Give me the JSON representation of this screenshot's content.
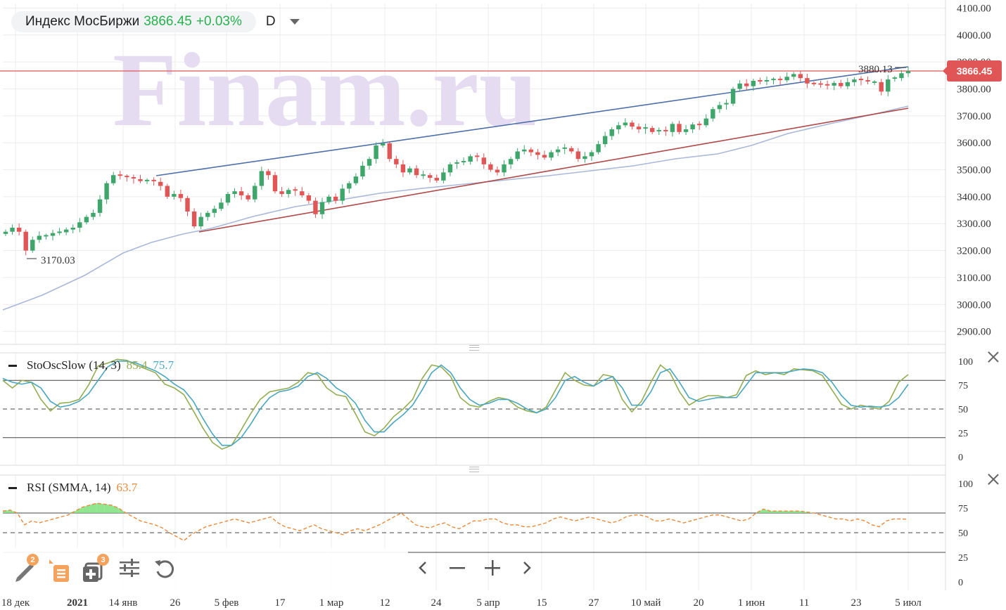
{
  "header": {
    "instrument": "Индекс МосБиржи",
    "price": "3866.45",
    "change": "+0.03%",
    "period": "D"
  },
  "colors": {
    "up": "#3fa66b",
    "down": "#e05656",
    "price_line": "#e05656",
    "upper_trend": "#4f6fa8",
    "lower_trend": "#b04848",
    "ma": "#a9b8d8",
    "stoch_k": "#93ad52",
    "stoch_d": "#49a6bf",
    "rsi": "#e88a3a",
    "rsi_fill": "#7ee07a",
    "watermark": "#e6dcf2"
  },
  "watermark": "Finam.ru",
  "chart_data": [
    {
      "type": "candlestick",
      "title": "Индекс МосБиржи",
      "ylim": [
        2850,
        4120
      ],
      "y_ticks": [
        "4100.00",
        "4000.00",
        "3900.00",
        "3800.00",
        "3700.00",
        "3600.00",
        "3500.00",
        "3400.00",
        "3300.00",
        "3200.00",
        "3100.00",
        "3000.00",
        "2900.00"
      ],
      "last_price_label": "3866.45",
      "annotations": {
        "high": "3880.13",
        "low": "3170.03"
      },
      "x_tick_labels": [
        "18 дек",
        "2021",
        "14 янв",
        "26",
        "5 фев",
        "17",
        "1 мар",
        "12",
        "24",
        "5 апр",
        "15",
        "27",
        "10 май",
        "20",
        "1 июн",
        "11",
        "23",
        "5 июл"
      ],
      "close": [
        3270,
        3285,
        3270,
        3200,
        3240,
        3255,
        3255,
        3265,
        3268,
        3278,
        3285,
        3305,
        3325,
        3340,
        3390,
        3450,
        3480,
        3475,
        3470,
        3465,
        3458,
        3460,
        3455,
        3440,
        3400,
        3410,
        3395,
        3345,
        3290,
        3325,
        3340,
        3355,
        3378,
        3410,
        3420,
        3405,
        3390,
        3440,
        3495,
        3480,
        3420,
        3410,
        3425,
        3420,
        3405,
        3385,
        3335,
        3380,
        3400,
        3385,
        3430,
        3450,
        3475,
        3515,
        3540,
        3590,
        3598,
        3540,
        3520,
        3490,
        3505,
        3480,
        3480,
        3470,
        3460,
        3490,
        3520,
        3525,
        3530,
        3550,
        3545,
        3520,
        3500,
        3490,
        3520,
        3540,
        3568,
        3575,
        3565,
        3555,
        3545,
        3565,
        3575,
        3580,
        3568,
        3540,
        3550,
        3565,
        3595,
        3625,
        3650,
        3665,
        3675,
        3660,
        3650,
        3655,
        3640,
        3645,
        3640,
        3670,
        3640,
        3650,
        3668,
        3665,
        3690,
        3725,
        3740,
        3745,
        3800,
        3820,
        3810,
        3830,
        3825,
        3830,
        3835,
        3832,
        3845,
        3855,
        3840,
        3820,
        3818,
        3815,
        3812,
        3822,
        3810,
        3825,
        3835,
        3830,
        3825,
        3825,
        3790,
        3835,
        3840,
        3858,
        3866
      ]
    },
    {
      "type": "line",
      "title": "StoOscSlow (14, 3)",
      "ylim": [
        0,
        100
      ],
      "y_ticks": [
        "100",
        "75",
        "50",
        "25",
        "0"
      ],
      "series": [
        {
          "name": "%K",
          "value_label": "85.4",
          "values": [
            80,
            72,
            80,
            78,
            60,
            48,
            56,
            57,
            60,
            75,
            95,
            98,
            102,
            101,
            96,
            92,
            88,
            76,
            72,
            65,
            48,
            30,
            15,
            8,
            12,
            28,
            45,
            60,
            68,
            70,
            72,
            78,
            88,
            86,
            72,
            65,
            63,
            45,
            26,
            22,
            30,
            42,
            50,
            60,
            82,
            96,
            94,
            84,
            62,
            54,
            52,
            58,
            62,
            60,
            52,
            48,
            46,
            52,
            70,
            88,
            80,
            75,
            74,
            86,
            84,
            60,
            47,
            58,
            78,
            96,
            88,
            68,
            54,
            60,
            64,
            64,
            62,
            65,
            85,
            90,
            86,
            88,
            86,
            92,
            91,
            90,
            85,
            70,
            55,
            50,
            54,
            52,
            50,
            58,
            78,
            86
          ],
          "final_value": 85.4
        },
        {
          "name": "%D",
          "value_label": "75.7",
          "values": [
            82,
            78,
            76,
            78,
            72,
            58,
            52,
            54,
            58,
            66,
            80,
            94,
            100,
            100,
            98,
            94,
            90,
            84,
            76,
            70,
            58,
            40,
            24,
            12,
            12,
            20,
            34,
            50,
            62,
            68,
            70,
            74,
            84,
            88,
            82,
            72,
            66,
            56,
            38,
            26,
            26,
            36,
            44,
            54,
            70,
            88,
            96,
            88,
            72,
            60,
            54,
            56,
            60,
            60,
            56,
            50,
            46,
            50,
            62,
            80,
            84,
            78,
            74,
            80,
            84,
            72,
            54,
            54,
            68,
            88,
            92,
            78,
            62,
            58,
            60,
            62,
            62,
            62,
            75,
            88,
            88,
            88,
            88,
            90,
            92,
            91,
            88,
            78,
            64,
            54,
            52,
            53,
            52,
            54,
            62,
            75.7
          ],
          "final_value": 75.7
        }
      ],
      "levels": [
        80,
        50,
        20
      ]
    },
    {
      "type": "line",
      "title": "RSI (SMMA, 14)",
      "ylim": [
        0,
        100
      ],
      "y_ticks": [
        "100",
        "75",
        "50",
        "25",
        "0"
      ],
      "series": [
        {
          "name": "RSI",
          "value_label": "63.7",
          "values": [
            72,
            73,
            70,
            58,
            62,
            60,
            62,
            64,
            66,
            68,
            72,
            76,
            78,
            80,
            79,
            78,
            75,
            70,
            66,
            62,
            60,
            58,
            55,
            50,
            46,
            42,
            48,
            52,
            56,
            58,
            60,
            62,
            64,
            62,
            60,
            62,
            64,
            66,
            60,
            56,
            54,
            52,
            55,
            58,
            54,
            52,
            50,
            48,
            52,
            54,
            52,
            55,
            58,
            62,
            66,
            70,
            64,
            58,
            56,
            55,
            58,
            60,
            56,
            54,
            58,
            62,
            62,
            64,
            64,
            60,
            58,
            58,
            56,
            56,
            58,
            60,
            64,
            66,
            64,
            62,
            64,
            66,
            64,
            62,
            60,
            62,
            66,
            68,
            68,
            66,
            62,
            62,
            64,
            62,
            60,
            62,
            64,
            66,
            68,
            68,
            66,
            64,
            62,
            64,
            70,
            74,
            72,
            72,
            72,
            72,
            72,
            71,
            70,
            68,
            66,
            64,
            64,
            62,
            64,
            62,
            58,
            56,
            62,
            64,
            64,
            63.7
          ],
          "final_value": 63.7
        }
      ],
      "levels": [
        70,
        50,
        30
      ]
    }
  ],
  "toolbar": {
    "draw_badge": "2",
    "layers_badge": "3"
  }
}
